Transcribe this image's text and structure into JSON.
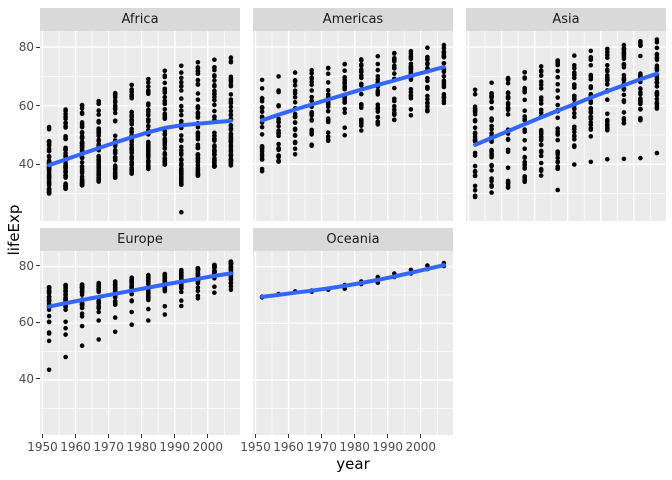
{
  "figure": {
    "background": "#FFFFFF",
    "panel_bg": "#EBEBEB",
    "strip_bg": "#D9D9D9",
    "grid_color": "#FFFFFF",
    "point_color": "#000000",
    "smooth_color": "#3366FF",
    "axis_text_color": "#4D4D4D",
    "strip_text_color": "#1A1A1A"
  },
  "chart_data": {
    "type": "scatter",
    "title": "",
    "xlabel": "year",
    "ylabel": "lifeExp",
    "x_ticks": [
      1950,
      1960,
      1970,
      1980,
      1990,
      2000
    ],
    "y_ticks": [
      80,
      60,
      40
    ],
    "minor_x": [
      1955,
      1965,
      1975,
      1985,
      1995,
      2005
    ],
    "minor_y": [
      30,
      50,
      70
    ],
    "xlim": [
      1949.25,
      2009.75
    ],
    "ylim": [
      20.6,
      85.5
    ],
    "grid": true,
    "legend_position": "none",
    "years": [
      1952,
      1957,
      1962,
      1967,
      1972,
      1977,
      1982,
      1987,
      1992,
      1997,
      2002,
      2007
    ],
    "facets": [
      {
        "label": "Africa",
        "n_points_per_year": 52,
        "density_skew": 1.5,
        "seed": 11,
        "value_ranges": [
          [
            30.0,
            52.7
          ],
          [
            31.6,
            58.7
          ],
          [
            32.8,
            60.2
          ],
          [
            34.1,
            61.6
          ],
          [
            35.4,
            64.3
          ],
          [
            36.8,
            67.1
          ],
          [
            38.4,
            69.1
          ],
          [
            39.9,
            71.9
          ],
          [
            33.0,
            73.6
          ],
          [
            36.1,
            74.8
          ],
          [
            39.2,
            75.7
          ],
          [
            39.6,
            76.4
          ]
        ],
        "outliers": [
          [
            1992,
            23.6
          ]
        ],
        "smooth": [
          39.7,
          41.6,
          43.6,
          45.5,
          47.4,
          49.2,
          50.9,
          52.4,
          53.3,
          53.8,
          54.3,
          54.8
        ]
      },
      {
        "label": "Americas",
        "n_points_per_year": 25,
        "density_skew": 0.9,
        "seed": 22,
        "value_ranges": [
          [
            37.6,
            68.8
          ],
          [
            40.9,
            70.0
          ],
          [
            43.4,
            71.3
          ],
          [
            46.3,
            72.1
          ],
          [
            48.0,
            72.9
          ],
          [
            49.9,
            74.2
          ],
          [
            51.5,
            75.8
          ],
          [
            53.6,
            76.9
          ],
          [
            55.1,
            78.0
          ],
          [
            56.7,
            78.6
          ],
          [
            58.1,
            79.8
          ],
          [
            60.9,
            80.7
          ]
        ],
        "outliers": [],
        "smooth": [
          55.0,
          56.9,
          58.7,
          60.4,
          62.1,
          63.8,
          65.5,
          67.1,
          68.6,
          70.2,
          71.7,
          73.2
        ]
      },
      {
        "label": "Asia",
        "n_points_per_year": 31,
        "density_skew": 1.1,
        "seed": 33,
        "value_ranges": [
          [
            28.8,
            65.4
          ],
          [
            30.3,
            67.8
          ],
          [
            32.0,
            69.4
          ],
          [
            34.0,
            71.4
          ],
          [
            36.1,
            73.4
          ],
          [
            38.4,
            75.4
          ],
          [
            45.9,
            77.1
          ],
          [
            49.5,
            78.7
          ],
          [
            51.6,
            79.4
          ],
          [
            54.0,
            80.7
          ],
          [
            55.0,
            82.0
          ],
          [
            59.0,
            82.6
          ]
        ],
        "outliers": [
          [
            1977,
            31.2
          ],
          [
            1982,
            39.9
          ],
          [
            1987,
            40.8
          ],
          [
            1992,
            41.7
          ],
          [
            1997,
            41.8
          ],
          [
            2002,
            42.1
          ],
          [
            2007,
            43.8
          ]
        ],
        "smooth": [
          46.6,
          49.0,
          51.3,
          53.7,
          56.0,
          58.3,
          60.5,
          62.7,
          64.9,
          67.0,
          69.0,
          70.9
        ]
      },
      {
        "label": "Europe",
        "n_points_per_year": 28,
        "density_skew": 0.42,
        "seed": 44,
        "value_ranges": [
          [
            53.8,
            72.7
          ],
          [
            56.0,
            73.5
          ],
          [
            59.0,
            73.7
          ],
          [
            61.0,
            74.2
          ],
          [
            62.0,
            74.7
          ],
          [
            64.0,
            76.1
          ],
          [
            65.0,
            77.0
          ],
          [
            66.0,
            77.4
          ],
          [
            68.0,
            78.8
          ],
          [
            69.7,
            79.4
          ],
          [
            70.8,
            80.6
          ],
          [
            71.8,
            81.8
          ]
        ],
        "outliers": [
          [
            1952,
            43.6
          ],
          [
            1957,
            48.1
          ],
          [
            1962,
            52.1
          ],
          [
            1967,
            54.3
          ],
          [
            1972,
            57.0
          ],
          [
            1977,
            59.5
          ],
          [
            1982,
            61.0
          ],
          [
            1987,
            63.1
          ],
          [
            1992,
            66.1
          ],
          [
            1997,
            68.8
          ]
        ],
        "smooth": [
          65.9,
          67.1,
          68.2,
          69.3,
          70.4,
          71.5,
          72.6,
          73.7,
          74.7,
          75.7,
          76.7,
          77.6
        ]
      },
      {
        "label": "Oceania",
        "seed": 55,
        "points": [
          [
            1952,
            69.12
          ],
          [
            1952,
            69.39
          ],
          [
            1957,
            70.26
          ],
          [
            1957,
            70.33
          ],
          [
            1962,
            70.93
          ],
          [
            1962,
            71.24
          ],
          [
            1967,
            71.1
          ],
          [
            1967,
            71.52
          ],
          [
            1972,
            71.89
          ],
          [
            1972,
            71.93
          ],
          [
            1977,
            72.22
          ],
          [
            1977,
            73.49
          ],
          [
            1982,
            73.84
          ],
          [
            1982,
            74.74
          ],
          [
            1987,
            74.32
          ],
          [
            1987,
            76.32
          ],
          [
            1992,
            76.33
          ],
          [
            1992,
            77.56
          ],
          [
            1997,
            77.55
          ],
          [
            1997,
            78.83
          ],
          [
            2002,
            79.11
          ],
          [
            2002,
            80.37
          ],
          [
            2007,
            80.2
          ],
          [
            2007,
            81.24
          ]
        ],
        "outliers": [],
        "smooth": [
          69.3,
          70.0,
          70.8,
          71.5,
          72.3,
          73.2,
          74.2,
          75.3,
          76.5,
          77.8,
          79.2,
          80.5
        ]
      }
    ]
  }
}
